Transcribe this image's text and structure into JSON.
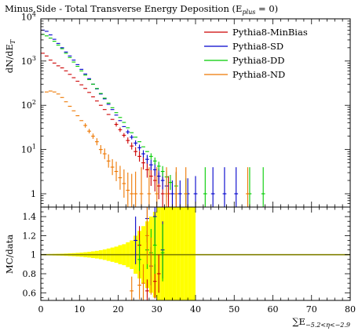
{
  "chart_data": {
    "type": "scatter",
    "title": "Minus Side - Total Transverse Energy Deposition (E",
    "title_sub": "plus",
    "title_end": " = 0)",
    "xlabel": "∑E",
    "xlabel_sub": "−5.2<η<−2.9",
    "ylabel_main": "dN/dE",
    "ylabel_main_sub": "T",
    "ylabel_ratio": "MC/data",
    "x_range": [
      0,
      80
    ],
    "main_y_range": [
      0.5,
      9000
    ],
    "main_y_scale": "log",
    "ratio_y_range": [
      0.52,
      1.5
    ],
    "x_ticks": [
      "0",
      "10",
      "20",
      "30",
      "40",
      "50",
      "60",
      "70",
      "80"
    ],
    "main_y_ticks": [
      {
        "value": 1,
        "label": "1",
        "exp": ""
      },
      {
        "value": 10,
        "label": "10",
        "exp": "1"
      },
      {
        "value": 100,
        "label": "10",
        "exp": "2"
      },
      {
        "value": 1000,
        "label": "10",
        "exp": "3"
      },
      {
        "value": 10000,
        "label": "10",
        "exp": "4"
      }
    ],
    "ratio_y_ticks": [
      0.6,
      0.8,
      1,
      1.2,
      1.4
    ],
    "legend_position": "top-right",
    "series": [
      {
        "name": "Pythia8-MinBias",
        "color": "#cc0000",
        "points": [
          [
            0.5,
            1500,
            0
          ],
          [
            1.5,
            1300,
            0
          ],
          [
            2.5,
            1050,
            0
          ],
          [
            3.5,
            900,
            0
          ],
          [
            4.5,
            780,
            0
          ],
          [
            5.5,
            700,
            0
          ],
          [
            6.5,
            600,
            0
          ],
          [
            7.5,
            500,
            0
          ],
          [
            8.5,
            420,
            0
          ],
          [
            9.5,
            350,
            0
          ],
          [
            10.5,
            290,
            0
          ],
          [
            11.5,
            240,
            0
          ],
          [
            12.5,
            195,
            0
          ],
          [
            13.5,
            155,
            0
          ],
          [
            14.5,
            125,
            0
          ],
          [
            15.5,
            100,
            0
          ],
          [
            16.5,
            80,
            0
          ],
          [
            17.5,
            62,
            0
          ],
          [
            18.5,
            48,
            0
          ],
          [
            19.5,
            37,
            0.05
          ],
          [
            20.5,
            28,
            0.05
          ],
          [
            21.5,
            21,
            0.05
          ],
          [
            22.5,
            16,
            0.07
          ],
          [
            23.5,
            12,
            0.08
          ],
          [
            24.5,
            9,
            0.1
          ],
          [
            25.5,
            7,
            0.12
          ],
          [
            26.5,
            5,
            0.15
          ],
          [
            27.5,
            3.5,
            0.18
          ],
          [
            28.5,
            2.5,
            0.22
          ],
          [
            29.5,
            2,
            0.25
          ],
          [
            30.5,
            1.5,
            0.3
          ],
          [
            31.5,
            1,
            0.4
          ],
          [
            33,
            1,
            0.4
          ],
          [
            35,
            1,
            0.5
          ]
        ]
      },
      {
        "name": "Pythia8-SD",
        "color": "#0000cc",
        "points": [
          [
            0.5,
            5000,
            0
          ],
          [
            1.5,
            4700,
            0
          ],
          [
            2.5,
            3900,
            0
          ],
          [
            3.5,
            3100,
            0
          ],
          [
            4.5,
            2500,
            0
          ],
          [
            5.5,
            2000,
            0
          ],
          [
            6.5,
            1600,
            0
          ],
          [
            7.5,
            1300,
            0
          ],
          [
            8.5,
            1050,
            0
          ],
          [
            9.5,
            830,
            0
          ],
          [
            10.5,
            650,
            0
          ],
          [
            11.5,
            510,
            0
          ],
          [
            12.5,
            400,
            0
          ],
          [
            13.5,
            300,
            0
          ],
          [
            14.5,
            235,
            0
          ],
          [
            15.5,
            180,
            0
          ],
          [
            16.5,
            140,
            0
          ],
          [
            17.5,
            105,
            0
          ],
          [
            18.5,
            80,
            0
          ],
          [
            19.5,
            60,
            0
          ],
          [
            20.5,
            45,
            0
          ],
          [
            21.5,
            33,
            0
          ],
          [
            22.5,
            25,
            0.05
          ],
          [
            23.5,
            19,
            0.05
          ],
          [
            24.5,
            14,
            0.06
          ],
          [
            25.5,
            11,
            0.07
          ],
          [
            26.5,
            8,
            0.08
          ],
          [
            27.5,
            6,
            0.1
          ],
          [
            28.5,
            4.5,
            0.12
          ],
          [
            29.5,
            3.5,
            0.14
          ],
          [
            30.5,
            2.5,
            0.17
          ],
          [
            31.5,
            2,
            0.2
          ],
          [
            32.5,
            1.5,
            0.25
          ],
          [
            34,
            1,
            0.3
          ],
          [
            36,
            1,
            0.3
          ],
          [
            38,
            1,
            0.35
          ],
          [
            40,
            1,
            0.4
          ],
          [
            44.5,
            1,
            0.6
          ],
          [
            47.5,
            1,
            0.6
          ],
          [
            50.5,
            1,
            0.6
          ]
        ]
      },
      {
        "name": "Pythia8-DD",
        "color": "#00cc00",
        "points": [
          [
            0.5,
            4000,
            0
          ],
          [
            1.5,
            3700,
            0
          ],
          [
            2.5,
            3300,
            0
          ],
          [
            3.5,
            2800,
            0
          ],
          [
            4.5,
            2300,
            0
          ],
          [
            5.5,
            1900,
            0
          ],
          [
            6.5,
            1500,
            0
          ],
          [
            7.5,
            1200,
            0
          ],
          [
            8.5,
            950,
            0
          ],
          [
            9.5,
            760,
            0
          ],
          [
            10.5,
            600,
            0
          ],
          [
            11.5,
            480,
            0
          ],
          [
            12.5,
            380,
            0
          ],
          [
            13.5,
            300,
            0
          ],
          [
            14.5,
            240,
            0
          ],
          [
            15.5,
            185,
            0
          ],
          [
            16.5,
            145,
            0
          ],
          [
            17.5,
            112,
            0
          ],
          [
            18.5,
            88,
            0
          ],
          [
            19.5,
            68,
            0
          ],
          [
            20.5,
            53,
            0
          ],
          [
            21.5,
            41,
            0
          ],
          [
            22.5,
            31,
            0
          ],
          [
            23.5,
            24,
            0
          ],
          [
            24.5,
            19,
            0
          ],
          [
            25.5,
            15,
            0
          ],
          [
            26.5,
            11.5,
            0
          ],
          [
            27.5,
            9,
            0
          ],
          [
            28.5,
            7,
            0.07
          ],
          [
            29.5,
            5.5,
            0.08
          ],
          [
            30.5,
            4.2,
            0.1
          ],
          [
            31.5,
            3.2,
            0.12
          ],
          [
            32.5,
            2.4,
            0.14
          ],
          [
            33.5,
            1.8,
            0.17
          ],
          [
            35,
            1.5,
            0.3
          ],
          [
            37.5,
            1,
            0.35
          ],
          [
            42.5,
            1,
            0.6
          ],
          [
            54,
            1,
            0.6
          ],
          [
            57.5,
            1,
            0.6
          ]
        ]
      },
      {
        "name": "Pythia8-ND",
        "color": "#ee7700",
        "points": [
          [
            1.5,
            200,
            0
          ],
          [
            2.5,
            210,
            0
          ],
          [
            3.5,
            200,
            0
          ],
          [
            4.5,
            180,
            0
          ],
          [
            5.5,
            150,
            0
          ],
          [
            6.5,
            120,
            0
          ],
          [
            7.5,
            95,
            0
          ],
          [
            8.5,
            75,
            0
          ],
          [
            9.5,
            58,
            0
          ],
          [
            10.5,
            45,
            0
          ],
          [
            11.5,
            35,
            0.05
          ],
          [
            12.5,
            26,
            0.05
          ],
          [
            13.5,
            20,
            0.06
          ],
          [
            14.5,
            15,
            0.08
          ],
          [
            15.5,
            10,
            0.1
          ],
          [
            16.5,
            8,
            0.12
          ],
          [
            17.5,
            5.5,
            0.15
          ],
          [
            18.5,
            4,
            0.18
          ],
          [
            19.5,
            3.2,
            0.22
          ],
          [
            20.5,
            2.3,
            0.27
          ],
          [
            21.5,
            1.7,
            0.32
          ],
          [
            22.5,
            1.2,
            0.4
          ],
          [
            23.5,
            1,
            0.45
          ],
          [
            24.5,
            1,
            0.5
          ],
          [
            26,
            1,
            0.6
          ],
          [
            28,
            1,
            0.6
          ],
          [
            30,
            1,
            0.6
          ],
          [
            32.5,
            1,
            0.6
          ],
          [
            35,
            1,
            0.6
          ],
          [
            37.5,
            1,
            0.6
          ],
          [
            53.5,
            1,
            0.6
          ]
        ]
      }
    ],
    "ratio_series": [
      {
        "name": "Pythia8-MinBias",
        "color": "#cc0000",
        "points": [
          [
            25.5,
            1.1,
            0.2
          ],
          [
            27.5,
            0.62,
            0.12
          ],
          [
            29.5,
            0.72,
            0.18
          ],
          [
            30.5,
            0.8,
            0.2
          ]
        ]
      },
      {
        "name": "Pythia8-SD",
        "color": "#0000cc",
        "points": [
          [
            24.5,
            1.15,
            0.25
          ],
          [
            27.5,
            1.38,
            0.25
          ],
          [
            28.5,
            0.88,
            0.2
          ],
          [
            29.5,
            1.4,
            0.3
          ],
          [
            31.5,
            1.05,
            0.3
          ]
        ]
      },
      {
        "name": "Pythia8-DD",
        "color": "#00cc00",
        "points": [
          [
            25.5,
            0.95,
            0.2
          ],
          [
            27.5,
            1.05,
            0.2
          ],
          [
            28.5,
            1.02,
            0.25
          ],
          [
            29.5,
            1.1,
            0.3
          ],
          [
            31.5,
            1.02,
            0.3
          ]
        ]
      },
      {
        "name": "Pythia8-ND",
        "color": "#ee7700",
        "points": [
          [
            23.5,
            0.62,
            0.15
          ],
          [
            25.5,
            0.68,
            0.15
          ],
          [
            26.5,
            0.7,
            0.2
          ],
          [
            27.5,
            1.2,
            0.3
          ],
          [
            28.5,
            0.88,
            0.3
          ]
        ]
      }
    ],
    "reference_line": {
      "value": 1,
      "color": "#808000"
    },
    "data_uncertainty_band": {
      "color": "#ffff00",
      "bins": [
        [
          0,
          1,
          0.005
        ],
        [
          1,
          2,
          0.006
        ],
        [
          2,
          3,
          0.007
        ],
        [
          3,
          4,
          0.008
        ],
        [
          4,
          5,
          0.009
        ],
        [
          5,
          6,
          0.01
        ],
        [
          6,
          7,
          0.012
        ],
        [
          7,
          8,
          0.014
        ],
        [
          8,
          9,
          0.016
        ],
        [
          9,
          10,
          0.019
        ],
        [
          10,
          11,
          0.022
        ],
        [
          11,
          12,
          0.026
        ],
        [
          12,
          13,
          0.03
        ],
        [
          13,
          14,
          0.035
        ],
        [
          14,
          15,
          0.04
        ],
        [
          15,
          16,
          0.047
        ],
        [
          16,
          17,
          0.055
        ],
        [
          17,
          18,
          0.065
        ],
        [
          18,
          19,
          0.075
        ],
        [
          19,
          20,
          0.085
        ],
        [
          20,
          21,
          0.1
        ],
        [
          21,
          22,
          0.11
        ],
        [
          22,
          23,
          0.13
        ],
        [
          23,
          24,
          0.15
        ],
        [
          24,
          25,
          0.2
        ],
        [
          25,
          26,
          0.25
        ],
        [
          26,
          27,
          0.3
        ],
        [
          27,
          28,
          0.35
        ],
        [
          28,
          29,
          0.4
        ],
        [
          29,
          30,
          0.45
        ],
        [
          30,
          31,
          0.5
        ],
        [
          31,
          32,
          0.55
        ],
        [
          32,
          33,
          0.6
        ],
        [
          33,
          34,
          0.65
        ],
        [
          34,
          35,
          0.7
        ],
        [
          35,
          36,
          0.75
        ],
        [
          36,
          37,
          0.8
        ],
        [
          37,
          38,
          0.85
        ],
        [
          38,
          39,
          0.9
        ],
        [
          39,
          40,
          0.95
        ]
      ]
    }
  }
}
